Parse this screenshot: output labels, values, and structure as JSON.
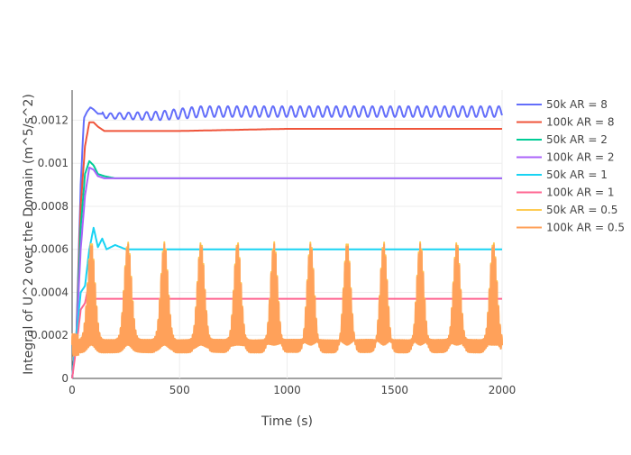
{
  "chart_data": {
    "type": "line",
    "xlabel": "Time (s)",
    "ylabel": "Integral of U^2 over the Domain (m^5/s^2)",
    "xlim": [
      0,
      2000
    ],
    "ylim": [
      0,
      0.00134
    ],
    "xticks": [
      0,
      500,
      1000,
      1500,
      2000
    ],
    "xtick_labels": [
      "0",
      "500",
      "1000",
      "1500",
      "2000"
    ],
    "yticks": [
      0,
      0.0002,
      0.0004,
      0.0006,
      0.0008,
      0.001,
      0.0012
    ],
    "ytick_labels": [
      "0",
      "0.0002",
      "0.0004",
      "0.0006",
      "0.0008",
      "0.001",
      "0.0012"
    ],
    "grid": true,
    "legend_position": "right",
    "series": [
      {
        "name": "50k AR = 8",
        "color": "#636efa",
        "x": [
          0,
          20,
          40,
          55,
          70,
          85,
          100,
          120,
          140,
          160,
          180,
          200,
          250,
          300,
          400,
          500,
          600,
          800,
          1000,
          1200,
          1400,
          1600,
          1800,
          2000
        ],
        "y": [
          0,
          0.0002,
          0.0009,
          0.00121,
          0.00124,
          0.00126,
          0.00125,
          0.00123,
          0.00123,
          0.00122,
          0.00122,
          0.00122,
          0.00122,
          0.00122,
          0.00122,
          0.00123,
          0.00124,
          0.00124,
          0.00124,
          0.00124,
          0.00124,
          0.00124,
          0.00124,
          0.00124
        ],
        "oscillation_amplitude": 2.5e-05,
        "oscillation_period": 42
      },
      {
        "name": "100k AR = 8",
        "color": "#ef553b",
        "x": [
          0,
          20,
          40,
          60,
          80,
          100,
          120,
          150,
          200,
          300,
          500,
          1000,
          1500,
          2000
        ],
        "y": [
          0,
          0.0002,
          0.0008,
          0.00108,
          0.00119,
          0.00119,
          0.00117,
          0.00115,
          0.00115,
          0.00115,
          0.00115,
          0.00116,
          0.00116,
          0.00116
        ]
      },
      {
        "name": "50k AR = 2",
        "color": "#00cc96",
        "x": [
          0,
          20,
          40,
          60,
          80,
          100,
          120,
          150,
          200,
          300,
          500,
          1000,
          1500,
          2000
        ],
        "y": [
          0,
          0.0002,
          0.0007,
          0.00095,
          0.00101,
          0.00099,
          0.00095,
          0.00094,
          0.00093,
          0.00093,
          0.00093,
          0.00093,
          0.00093,
          0.00093
        ]
      },
      {
        "name": "100k AR = 2",
        "color": "#ab63fa",
        "x": [
          0,
          20,
          40,
          60,
          80,
          100,
          120,
          150,
          200,
          300,
          500,
          1000,
          1500,
          2000
        ],
        "y": [
          0,
          0.0002,
          0.0006,
          0.00085,
          0.00098,
          0.00097,
          0.00094,
          0.00093,
          0.00093,
          0.00093,
          0.00093,
          0.00093,
          0.00093,
          0.00093
        ]
      },
      {
        "name": "50k AR = 1",
        "color": "#19d3f3",
        "x": [
          0,
          20,
          40,
          60,
          80,
          100,
          120,
          140,
          160,
          200,
          250,
          300,
          500,
          1000,
          1500,
          2000
        ],
        "y": [
          0,
          0.0002,
          0.0004,
          0.00043,
          0.0006,
          0.0007,
          0.00061,
          0.00065,
          0.0006,
          0.00062,
          0.0006,
          0.0006,
          0.0006,
          0.0006,
          0.0006,
          0.0006
        ]
      },
      {
        "name": "100k AR = 1",
        "color": "#ff6692",
        "x": [
          0,
          20,
          40,
          60,
          80,
          100,
          120,
          150,
          200,
          300,
          500,
          1000,
          1500,
          2000
        ],
        "y": [
          0,
          0.00015,
          0.00032,
          0.00035,
          0.00045,
          0.00037,
          0.00037,
          0.00037,
          0.00037,
          0.00037,
          0.00037,
          0.00037,
          0.00037,
          0.00037
        ]
      },
      {
        "name": "50k AR = 0.5",
        "color": "#fecb52",
        "x": [
          0,
          2000
        ],
        "y": [
          0.0002,
          0.0002
        ],
        "burst_period": 170,
        "burst_start": 30,
        "burst_peak": 0.00062,
        "burst_base": 0.00013
      },
      {
        "name": "100k AR = 0.5",
        "color": "#ffa15a",
        "x": [
          0,
          2000
        ],
        "y": [
          0.0002,
          0.0002
        ],
        "burst_period": 170,
        "burst_start": 30,
        "burst_peak": 0.00061,
        "burst_base": 0.00013
      }
    ]
  }
}
